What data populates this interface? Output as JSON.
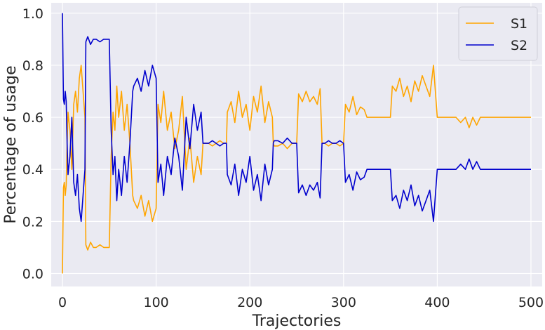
{
  "chart_data": {
    "type": "line",
    "title": "",
    "xlabel": "Trajectories",
    "ylabel": "Percentage of usage",
    "xlim": [
      -12,
      512
    ],
    "ylim": [
      -0.05,
      1.04
    ],
    "xticks": [
      0,
      100,
      200,
      300,
      400,
      500
    ],
    "yticks": [
      0.0,
      0.2,
      0.4,
      0.6,
      0.8,
      1.0
    ],
    "ytick_labels": [
      "0.0",
      "0.2",
      "0.4",
      "0.6",
      "0.8",
      "1.0"
    ],
    "grid": true,
    "legend_position": "top-right",
    "colors": {
      "background": "#eaeaf2",
      "grid": "#ffffff",
      "S1": "#ffa500",
      "S2": "#0000cd"
    },
    "note_complementary": true,
    "series": [
      {
        "name": "S1",
        "x": [
          0,
          1,
          2,
          3,
          4,
          5,
          6,
          8,
          10,
          12,
          14,
          16,
          18,
          20,
          22,
          24,
          25,
          27,
          30,
          33,
          36,
          40,
          44,
          48,
          50,
          52,
          54,
          56,
          58,
          60,
          63,
          66,
          69,
          72,
          75,
          76,
          80,
          84,
          88,
          92,
          96,
          100,
          102,
          105,
          108,
          112,
          116,
          120,
          124,
          128,
          132,
          136,
          140,
          144,
          148,
          150,
          152,
          156,
          160,
          164,
          168,
          172,
          175,
          176,
          180,
          184,
          188,
          192,
          196,
          200,
          204,
          208,
          212,
          216,
          220,
          224,
          225,
          226,
          230,
          235,
          240,
          245,
          250,
          252,
          256,
          260,
          264,
          268,
          272,
          275,
          277,
          280,
          284,
          288,
          292,
          296,
          300,
          302,
          306,
          310,
          314,
          318,
          322,
          325,
          330,
          340,
          350,
          352,
          356,
          360,
          364,
          368,
          372,
          376,
          380,
          384,
          388,
          392,
          396,
          400,
          402,
          410,
          420,
          425,
          430,
          434,
          438,
          442,
          446,
          450,
          460,
          470,
          480,
          490,
          495,
          500
        ],
        "y": [
          0.0,
          0.33,
          0.35,
          0.3,
          0.34,
          0.5,
          0.62,
          0.55,
          0.4,
          0.65,
          0.7,
          0.62,
          0.75,
          0.8,
          0.7,
          0.6,
          0.11,
          0.09,
          0.12,
          0.1,
          0.1,
          0.11,
          0.1,
          0.1,
          0.1,
          0.45,
          0.62,
          0.55,
          0.72,
          0.6,
          0.7,
          0.55,
          0.65,
          0.5,
          0.3,
          0.28,
          0.25,
          0.3,
          0.22,
          0.28,
          0.2,
          0.25,
          0.65,
          0.58,
          0.7,
          0.55,
          0.62,
          0.48,
          0.55,
          0.68,
          0.4,
          0.52,
          0.35,
          0.45,
          0.38,
          0.5,
          0.5,
          0.5,
          0.49,
          0.5,
          0.51,
          0.5,
          0.5,
          0.62,
          0.66,
          0.58,
          0.7,
          0.6,
          0.65,
          0.55,
          0.68,
          0.62,
          0.72,
          0.58,
          0.66,
          0.6,
          0.5,
          0.49,
          0.49,
          0.5,
          0.48,
          0.5,
          0.5,
          0.69,
          0.66,
          0.7,
          0.66,
          0.68,
          0.65,
          0.71,
          0.5,
          0.5,
          0.49,
          0.5,
          0.5,
          0.49,
          0.5,
          0.65,
          0.62,
          0.68,
          0.61,
          0.64,
          0.63,
          0.6,
          0.6,
          0.6,
          0.6,
          0.72,
          0.7,
          0.75,
          0.68,
          0.72,
          0.66,
          0.74,
          0.7,
          0.76,
          0.72,
          0.68,
          0.8,
          0.6,
          0.6,
          0.6,
          0.6,
          0.58,
          0.6,
          0.56,
          0.6,
          0.57,
          0.6,
          0.6,
          0.6,
          0.6,
          0.6,
          0.6,
          0.6,
          0.6
        ]
      },
      {
        "name": "S2",
        "x": [
          0,
          1,
          2,
          3,
          4,
          5,
          6,
          8,
          10,
          12,
          14,
          16,
          18,
          20,
          22,
          24,
          25,
          27,
          30,
          33,
          36,
          40,
          44,
          48,
          50,
          52,
          54,
          56,
          58,
          60,
          63,
          66,
          69,
          72,
          75,
          76,
          80,
          84,
          88,
          92,
          96,
          100,
          102,
          105,
          108,
          112,
          116,
          120,
          124,
          128,
          132,
          136,
          140,
          144,
          148,
          150,
          152,
          156,
          160,
          164,
          168,
          172,
          175,
          176,
          180,
          184,
          188,
          192,
          196,
          200,
          204,
          208,
          212,
          216,
          220,
          224,
          225,
          226,
          230,
          235,
          240,
          245,
          250,
          252,
          256,
          260,
          264,
          268,
          272,
          275,
          277,
          280,
          284,
          288,
          292,
          296,
          300,
          302,
          306,
          310,
          314,
          318,
          322,
          325,
          330,
          340,
          350,
          352,
          356,
          360,
          364,
          368,
          372,
          376,
          380,
          384,
          388,
          392,
          396,
          400,
          402,
          410,
          420,
          425,
          430,
          434,
          438,
          442,
          446,
          450,
          460,
          470,
          480,
          490,
          495,
          500
        ],
        "y": [
          1.0,
          0.67,
          0.65,
          0.7,
          0.66,
          0.5,
          0.38,
          0.45,
          0.6,
          0.35,
          0.3,
          0.38,
          0.25,
          0.2,
          0.3,
          0.4,
          0.89,
          0.91,
          0.88,
          0.9,
          0.9,
          0.89,
          0.9,
          0.9,
          0.9,
          0.55,
          0.38,
          0.45,
          0.28,
          0.4,
          0.3,
          0.45,
          0.35,
          0.5,
          0.7,
          0.72,
          0.75,
          0.7,
          0.78,
          0.72,
          0.8,
          0.75,
          0.35,
          0.42,
          0.3,
          0.45,
          0.38,
          0.52,
          0.45,
          0.32,
          0.6,
          0.48,
          0.65,
          0.55,
          0.62,
          0.5,
          0.5,
          0.5,
          0.51,
          0.5,
          0.49,
          0.5,
          0.5,
          0.38,
          0.34,
          0.42,
          0.3,
          0.4,
          0.35,
          0.45,
          0.32,
          0.38,
          0.28,
          0.42,
          0.34,
          0.4,
          0.5,
          0.51,
          0.51,
          0.5,
          0.52,
          0.5,
          0.5,
          0.31,
          0.34,
          0.3,
          0.34,
          0.32,
          0.35,
          0.29,
          0.5,
          0.5,
          0.51,
          0.5,
          0.5,
          0.51,
          0.5,
          0.35,
          0.38,
          0.32,
          0.39,
          0.36,
          0.37,
          0.4,
          0.4,
          0.4,
          0.4,
          0.28,
          0.3,
          0.25,
          0.32,
          0.28,
          0.34,
          0.26,
          0.3,
          0.24,
          0.28,
          0.32,
          0.2,
          0.4,
          0.4,
          0.4,
          0.4,
          0.42,
          0.4,
          0.44,
          0.4,
          0.43,
          0.4,
          0.4,
          0.4,
          0.4,
          0.4,
          0.4,
          0.4,
          0.4
        ]
      }
    ]
  }
}
